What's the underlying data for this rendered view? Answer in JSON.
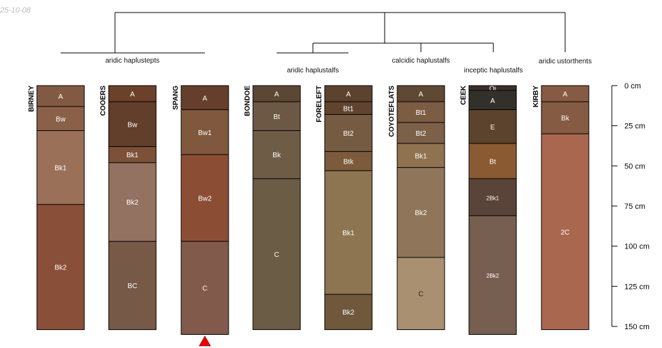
{
  "date_stamp": "25-10-08",
  "chart_data": {
    "type": "soil-profile",
    "depth_axis": {
      "unit": "cm",
      "range": [
        0,
        150
      ],
      "ticks": [
        "0 cm",
        "25 cm",
        "50 cm",
        "75 cm",
        "100 cm",
        "125 cm",
        "150 cm"
      ]
    },
    "group_labels": [
      "aridic haplustepts",
      "aridic haplustalfs",
      "calcidic haplustalfs",
      "inceptic haplustalfs",
      "aridic ustorthents"
    ],
    "profiles": [
      {
        "name": "BIRNEY",
        "horizons": [
          {
            "name": "A",
            "top": 0,
            "bottom": 13,
            "color": "#825A43"
          },
          {
            "name": "Bw",
            "top": 13,
            "bottom": 28,
            "color": "#8A6148"
          },
          {
            "name": "Bk1",
            "top": 28,
            "bottom": 74,
            "color": "#9B7058"
          },
          {
            "name": "Bk2",
            "top": 74,
            "bottom": 152,
            "color": "#8A4F39"
          }
        ]
      },
      {
        "name": "COOERS",
        "horizons": [
          {
            "name": "A",
            "top": 0,
            "bottom": 10,
            "color": "#6B4129"
          },
          {
            "name": "Bw",
            "top": 10,
            "bottom": 38,
            "color": "#623F2A"
          },
          {
            "name": "Bk1",
            "top": 38,
            "bottom": 48,
            "color": "#7C5138"
          },
          {
            "name": "Bk2",
            "top": 48,
            "bottom": 97,
            "color": "#937262"
          },
          {
            "name": "BC",
            "top": 97,
            "bottom": 152,
            "color": "#775948"
          }
        ]
      },
      {
        "name": "SPANG",
        "marker": "truncated",
        "horizons": [
          {
            "name": "A",
            "top": 0,
            "bottom": 15,
            "color": "#653F2B"
          },
          {
            "name": "Bw1",
            "top": 15,
            "bottom": 43,
            "color": "#7F583E"
          },
          {
            "name": "Bw2",
            "top": 43,
            "bottom": 97,
            "color": "#8B4E35"
          },
          {
            "name": "C",
            "top": 97,
            "bottom": 155,
            "color": "#825A4C"
          }
        ]
      },
      {
        "name": "BONDOE",
        "horizons": [
          {
            "name": "A",
            "top": 0,
            "bottom": 10,
            "color": "#5C4735"
          },
          {
            "name": "Bt",
            "top": 10,
            "bottom": 28,
            "color": "#6C5845"
          },
          {
            "name": "Bk",
            "top": 28,
            "bottom": 58,
            "color": "#6F5C47"
          },
          {
            "name": "C",
            "top": 58,
            "bottom": 152,
            "color": "#6B5C46"
          }
        ]
      },
      {
        "name": "FORELEFT",
        "horizons": [
          {
            "name": "A",
            "top": 0,
            "bottom": 10,
            "color": "#5C432F"
          },
          {
            "name": "Bt1",
            "top": 10,
            "bottom": 18,
            "color": "#614430"
          },
          {
            "name": "Bt2",
            "top": 18,
            "bottom": 41,
            "color": "#765B43"
          },
          {
            "name": "Btk",
            "top": 41,
            "bottom": 53,
            "color": "#7B5B3B"
          },
          {
            "name": "Bk1",
            "top": 53,
            "bottom": 130,
            "color": "#8C7550"
          },
          {
            "name": "Bk2",
            "top": 130,
            "bottom": 152,
            "color": "#6F583C"
          }
        ]
      },
      {
        "name": "COYOTEFLATS",
        "horizons": [
          {
            "name": "A",
            "top": 0,
            "bottom": 10,
            "color": "#604934"
          },
          {
            "name": "Bt1",
            "top": 10,
            "bottom": 23,
            "color": "#7D5C44"
          },
          {
            "name": "Bt2",
            "top": 23,
            "bottom": 36,
            "color": "#7C6048"
          },
          {
            "name": "Bk1",
            "top": 36,
            "bottom": 51,
            "color": "#8F7250"
          },
          {
            "name": "Bk2",
            "top": 51,
            "bottom": 107,
            "color": "#8F755A"
          },
          {
            "name": "C",
            "top": 107,
            "bottom": 152,
            "color": "#A89070"
          }
        ]
      },
      {
        "name": "CEEK",
        "horizons": [
          {
            "name": "Oi",
            "top": 0,
            "bottom": 3,
            "color": "#3A302A"
          },
          {
            "name": "A",
            "top": 3,
            "bottom": 15,
            "color": "#33302C"
          },
          {
            "name": "E",
            "top": 15,
            "bottom": 36,
            "color": "#5C432D"
          },
          {
            "name": "Bt",
            "top": 36,
            "bottom": 58,
            "color": "#8A5A32"
          },
          {
            "name": "2Bk1",
            "top": 58,
            "bottom": 81,
            "color": "#5A4338"
          },
          {
            "name": "2Bk2",
            "top": 81,
            "bottom": 155,
            "color": "#765E50"
          }
        ]
      },
      {
        "name": "KIRBY",
        "horizons": [
          {
            "name": "A",
            "top": 0,
            "bottom": 10,
            "color": "#875B43"
          },
          {
            "name": "Bk",
            "top": 10,
            "bottom": 30,
            "color": "#855B44"
          },
          {
            "name": "2C",
            "top": 30,
            "bottom": 152,
            "color": "#AA6750"
          }
        ]
      }
    ]
  }
}
